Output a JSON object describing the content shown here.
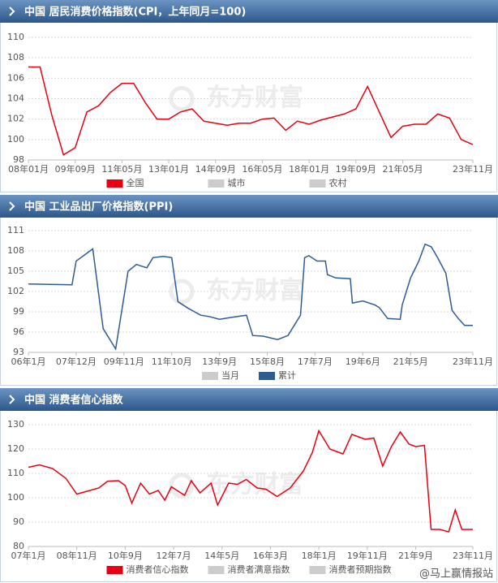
{
  "chart_data": [
    {
      "type": "line",
      "title": "中国 居民消费价格指数(CPI，上年同月=100)",
      "watermark": "东方财富",
      "x": [
        "2008-01",
        "2008-06",
        "2008-11",
        "2009-04",
        "2009-09",
        "2010-02",
        "2010-07",
        "2010-12",
        "2011-05",
        "2011-10",
        "2012-03",
        "2012-08",
        "2013-01",
        "2013-06",
        "2013-11",
        "2014-04",
        "2014-09",
        "2015-02",
        "2015-07",
        "2015-12",
        "2016-05",
        "2016-10",
        "2017-03",
        "2017-08",
        "2018-01",
        "2018-06",
        "2018-11",
        "2019-04",
        "2019-09",
        "2020-02",
        "2020-07",
        "2020-12",
        "2021-05",
        "2021-10",
        "2022-03",
        "2022-08",
        "2023-01",
        "2023-06",
        "2023-11"
      ],
      "series": [
        {
          "name": "全国",
          "color": "#e60012",
          "visible": true,
          "values": [
            107.1,
            107.1,
            102.4,
            98.5,
            99.2,
            102.7,
            103.3,
            104.6,
            105.5,
            105.5,
            103.6,
            102.0,
            102.0,
            102.7,
            103.0,
            101.8,
            101.6,
            101.4,
            101.6,
            101.6,
            102.0,
            102.1,
            100.9,
            101.8,
            101.5,
            101.9,
            102.2,
            102.5,
            103.0,
            105.2,
            102.7,
            100.2,
            101.3,
            101.5,
            101.5,
            102.5,
            102.1,
            100.0,
            99.5
          ]
        },
        {
          "name": "城市",
          "color": "#cccccc",
          "visible": false
        },
        {
          "name": "农村",
          "color": "#cccccc",
          "visible": false
        }
      ],
      "xlim": [
        "2008-01",
        "2023-11"
      ],
      "xticks": [
        {
          "value": "2008-01",
          "label": "08年01月"
        },
        {
          "value": "2009-09",
          "label": "09年09月"
        },
        {
          "value": "2011-05",
          "label": "11年05月"
        },
        {
          "value": "2013-01",
          "label": "13年01月"
        },
        {
          "value": "2014-09",
          "label": "14年09月"
        },
        {
          "value": "2016-05",
          "label": "16年05月"
        },
        {
          "value": "2018-01",
          "label": "18年01月"
        },
        {
          "value": "2019-09",
          "label": "19年09月"
        },
        {
          "value": "2021-05",
          "label": "21年05月"
        },
        {
          "value": "2023-11",
          "label": "23年11月"
        }
      ],
      "ylim": [
        98,
        110
      ],
      "yticks": [
        98,
        100,
        102,
        104,
        106,
        108,
        110
      ],
      "grid": true
    },
    {
      "type": "line",
      "title": "中国 工业品出厂价格指数(PPI)",
      "watermark": "东方财富",
      "x": [
        "2006-01",
        "2007-10",
        "2007-12",
        "2008-08",
        "2009-01",
        "2009-07",
        "2010-01",
        "2010-05",
        "2010-10",
        "2011-01",
        "2011-06",
        "2011-10",
        "2012-01",
        "2012-06",
        "2012-12",
        "2013-04",
        "2013-09",
        "2014-03",
        "2014-10",
        "2015-01",
        "2015-06",
        "2016-01",
        "2016-06",
        "2016-09",
        "2016-12",
        "2017-02",
        "2017-04",
        "2017-08",
        "2017-12",
        "2018-01",
        "2018-05",
        "2018-12",
        "2019-01",
        "2019-06",
        "2019-12",
        "2020-02",
        "2020-06",
        "2020-12",
        "2021-01",
        "2021-05",
        "2021-09",
        "2021-12",
        "2022-03",
        "2022-06",
        "2022-10",
        "2023-01",
        "2023-04",
        "2023-07",
        "2023-11"
      ],
      "series": [
        {
          "name": "当月",
          "color": "#cccccc",
          "visible": false
        },
        {
          "name": "累计",
          "color": "#2d5b94",
          "visible": true,
          "values": [
            103.1,
            103.0,
            106.5,
            108.3,
            96.5,
            93.5,
            105.0,
            106.0,
            105.5,
            107.0,
            107.2,
            107.0,
            100.5,
            99.5,
            98.5,
            98.3,
            97.9,
            98.2,
            98.5,
            95.5,
            95.4,
            94.9,
            95.5,
            97.0,
            98.5,
            107.0,
            107.3,
            106.5,
            106.5,
            104.5,
            104.0,
            103.9,
            100.3,
            100.6,
            100.0,
            99.6,
            98.0,
            97.9,
            100.0,
            104.0,
            106.5,
            109.0,
            108.6,
            107.0,
            104.7,
            99.2,
            98.0,
            97.0,
            97.0
          ]
        }
      ],
      "xlim": [
        "2006-01",
        "2023-11"
      ],
      "xticks": [
        {
          "value": "2006-01",
          "label": "06年1月"
        },
        {
          "value": "2007-12",
          "label": "07年12月"
        },
        {
          "value": "2009-11",
          "label": "09年11月"
        },
        {
          "value": "2011-10",
          "label": "11年10月"
        },
        {
          "value": "2013-09",
          "label": "13年9月"
        },
        {
          "value": "2015-08",
          "label": "15年8月"
        },
        {
          "value": "2017-07",
          "label": "17年7月"
        },
        {
          "value": "2019-06",
          "label": "19年6月"
        },
        {
          "value": "2021-05",
          "label": "21年5月"
        },
        {
          "value": "2023-11",
          "label": "23年11月"
        }
      ],
      "ylim": [
        93,
        111
      ],
      "yticks": [
        93,
        96,
        99,
        102,
        105,
        108,
        111
      ],
      "grid": true
    },
    {
      "type": "line",
      "title": "中国 消费者信心指数",
      "watermark": "东方财富",
      "footer_watermark": "@马上赢情报站",
      "x": [
        "2007-01",
        "2007-06",
        "2007-12",
        "2008-06",
        "2008-11",
        "2009-03",
        "2009-09",
        "2010-01",
        "2010-06",
        "2010-09",
        "2010-12",
        "2011-04",
        "2011-08",
        "2011-12",
        "2012-03",
        "2012-06",
        "2012-12",
        "2013-03",
        "2013-07",
        "2013-12",
        "2014-03",
        "2014-08",
        "2014-12",
        "2015-04",
        "2015-09",
        "2016-01",
        "2016-06",
        "2016-12",
        "2017-06",
        "2017-10",
        "2018-01",
        "2018-06",
        "2018-12",
        "2019-04",
        "2019-10",
        "2020-02",
        "2020-06",
        "2020-10",
        "2021-02",
        "2021-06",
        "2021-09",
        "2022-01",
        "2022-04",
        "2022-08",
        "2022-12",
        "2023-03",
        "2023-06",
        "2023-11"
      ],
      "series": [
        {
          "name": "消费者信心指数",
          "color": "#e60012",
          "visible": true,
          "values": [
            112.5,
            113.5,
            112.0,
            108.0,
            101.5,
            102.5,
            104.0,
            106.8,
            107.0,
            105.0,
            97.8,
            106.0,
            101.5,
            103.0,
            99.0,
            104.5,
            101.0,
            107.0,
            102.0,
            106.0,
            97.0,
            106.0,
            105.5,
            107.5,
            104.0,
            103.5,
            100.5,
            104.0,
            111.0,
            118.5,
            127.5,
            120.0,
            118.0,
            126.0,
            124.0,
            124.5,
            113.0,
            121.0,
            127.0,
            122.0,
            121.0,
            121.5,
            87.0,
            87.0,
            86.0,
            95.0,
            87.0,
            87.0
          ]
        },
        {
          "name": "消费者满意指数",
          "color": "#cccccc",
          "visible": false
        },
        {
          "name": "消费者预期指数",
          "color": "#cccccc",
          "visible": false
        }
      ],
      "xlim": [
        "2007-01",
        "2023-11"
      ],
      "xticks": [
        {
          "value": "2007-01",
          "label": "07年1月"
        },
        {
          "value": "2008-11",
          "label": "08年11月"
        },
        {
          "value": "2010-09",
          "label": "10年9月"
        },
        {
          "value": "2012-07",
          "label": "12年7月"
        },
        {
          "value": "2014-05",
          "label": "14年5月"
        },
        {
          "value": "2016-03",
          "label": "16年3月"
        },
        {
          "value": "2018-01",
          "label": "18年1月"
        },
        {
          "value": "2019-11",
          "label": "19年11月"
        },
        {
          "value": "2021-09",
          "label": "21年9月"
        },
        {
          "value": "2023-11",
          "label": "23年11月"
        }
      ],
      "ylim": [
        80,
        130
      ],
      "yticks": [
        80,
        90,
        100,
        110,
        120,
        130
      ],
      "grid": true
    }
  ]
}
